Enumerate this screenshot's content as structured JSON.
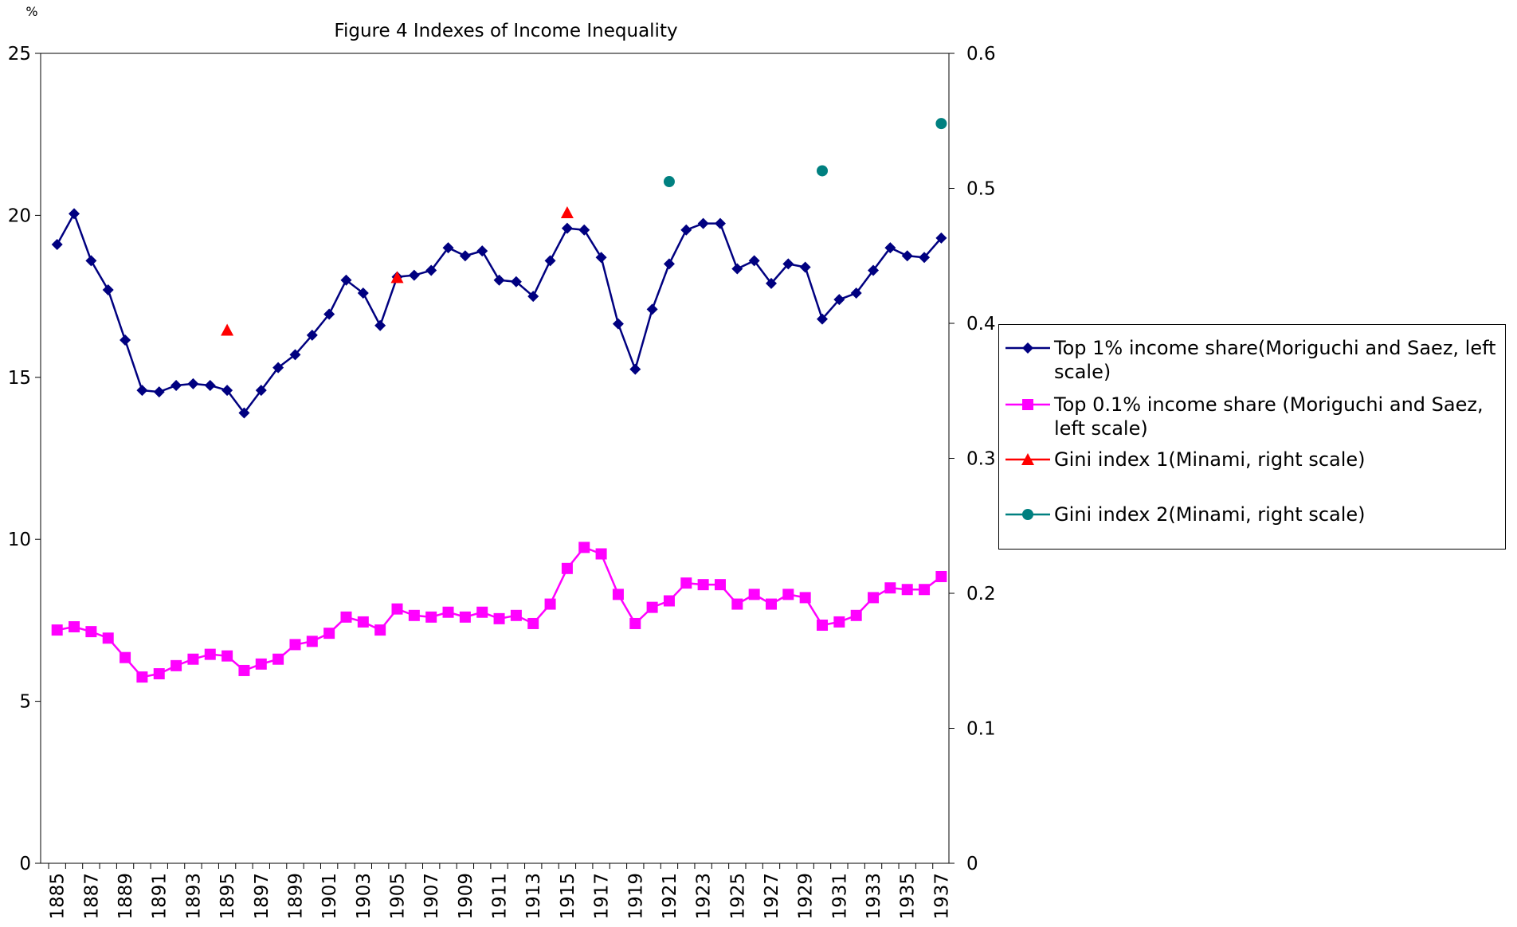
{
  "chart_data": {
    "type": "line",
    "title": "Figure 4 Indexes of Income Inequality",
    "y_label": "%",
    "categories": [
      1885,
      null,
      1887,
      null,
      1889,
      null,
      1891,
      null,
      1893,
      null,
      1895,
      null,
      1897,
      null,
      1899,
      null,
      1901,
      null,
      1903,
      null,
      1905,
      null,
      1907,
      null,
      1909,
      null,
      1911,
      null,
      1913,
      null,
      1915,
      null,
      1917,
      null,
      1919,
      null,
      1921,
      null,
      1923,
      null,
      1925,
      null,
      1927,
      null,
      1929,
      null,
      1931,
      null,
      1933,
      null,
      1935,
      null,
      1937
    ],
    "ylim": [
      0,
      25
    ],
    "yticks": [
      0,
      5,
      10,
      15,
      20,
      25
    ],
    "y2lim": [
      0,
      0.6
    ],
    "y2ticks": [
      0,
      0.1,
      0.2,
      0.3,
      0.4,
      0.5,
      0.6
    ],
    "series": [
      {
        "name": "Top 1% income share(Moriguchi and Saez, left scale)",
        "color": "#000080",
        "marker": "diamond",
        "line": true,
        "values": [
          19.1,
          20.05,
          18.6,
          17.7,
          16.15,
          14.6,
          14.55,
          14.75,
          14.8,
          14.75,
          14.6,
          13.9,
          14.6,
          15.3,
          15.7,
          16.3,
          16.95,
          18.0,
          17.6,
          16.6,
          18.1,
          18.15,
          18.3,
          19.0,
          18.75,
          18.9,
          18.0,
          17.95,
          17.5,
          18.6,
          19.6,
          19.55,
          18.7,
          16.65,
          15.25,
          17.1,
          18.5,
          19.55,
          19.75,
          19.75,
          18.35,
          18.6,
          17.9,
          18.5,
          18.4,
          16.8,
          17.4,
          17.6,
          18.3,
          19.0,
          18.75,
          18.7,
          19.3
        ]
      },
      {
        "name": "Top 0.1% income share (Moriguchi and Saez, left scale)",
        "color": "#ff00ff",
        "marker": "square",
        "line": true,
        "values": [
          7.2,
          7.3,
          7.15,
          6.95,
          6.35,
          5.75,
          5.85,
          6.1,
          6.3,
          6.45,
          6.4,
          5.95,
          6.15,
          6.3,
          6.75,
          6.85,
          7.1,
          7.6,
          7.45,
          7.2,
          7.85,
          7.65,
          7.6,
          7.75,
          7.6,
          7.75,
          7.55,
          7.65,
          7.4,
          8.0,
          9.1,
          9.75,
          9.55,
          8.3,
          7.4,
          7.9,
          8.1,
          8.65,
          8.6,
          8.6,
          8.0,
          8.3,
          8.0,
          8.3,
          8.2,
          7.35,
          7.45,
          7.65,
          8.2,
          8.5,
          8.45,
          8.45,
          8.85
        ]
      },
      {
        "name": "Gini index 1(Minami, right scale)",
        "color": "#ff0000",
        "marker": "triangle",
        "line": false,
        "axis": "y2",
        "values": [
          null,
          null,
          null,
          null,
          null,
          null,
          null,
          null,
          null,
          null,
          0.395,
          null,
          null,
          null,
          null,
          null,
          null,
          null,
          null,
          null,
          0.434,
          null,
          null,
          null,
          null,
          null,
          null,
          null,
          null,
          null,
          0.482,
          null,
          null,
          null,
          null,
          null,
          null,
          null,
          null,
          null,
          null,
          null,
          null,
          null,
          null,
          null,
          null,
          null,
          null,
          null,
          null,
          null,
          null
        ]
      },
      {
        "name": "Gini index 2(Minami, right scale)",
        "color": "#008080",
        "marker": "circle",
        "line": false,
        "axis": "y2",
        "values": [
          null,
          null,
          null,
          null,
          null,
          null,
          null,
          null,
          null,
          null,
          null,
          null,
          null,
          null,
          null,
          null,
          null,
          null,
          null,
          null,
          null,
          null,
          null,
          null,
          null,
          null,
          null,
          null,
          null,
          null,
          null,
          null,
          null,
          null,
          null,
          null,
          0.505,
          null,
          null,
          null,
          null,
          null,
          null,
          null,
          null,
          0.513,
          null,
          null,
          null,
          null,
          null,
          null,
          0.548
        ]
      }
    ]
  }
}
